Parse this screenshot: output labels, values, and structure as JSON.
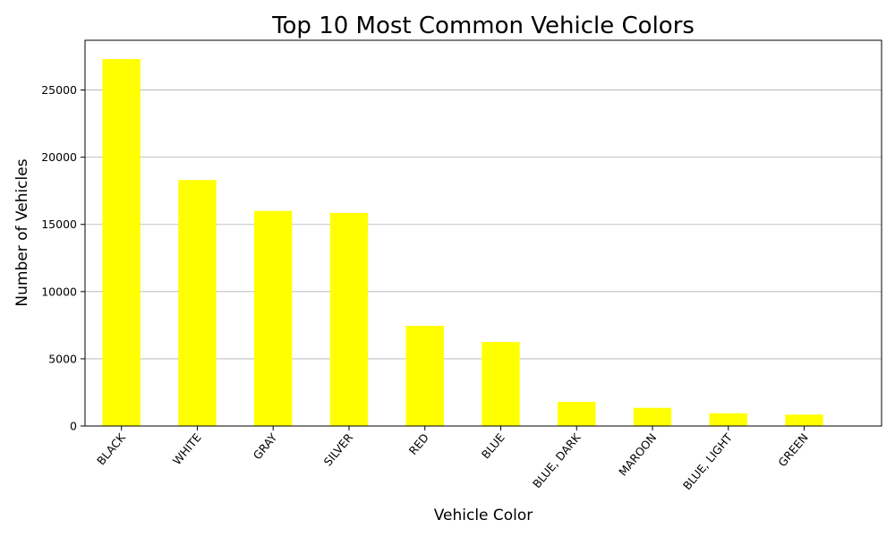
{
  "chart_data": {
    "type": "bar",
    "title": "Top 10 Most Common Vehicle Colors",
    "xlabel": "Vehicle Color",
    "ylabel": "Number of Vehicles",
    "categories": [
      "BLACK",
      "WHITE",
      "GRAY",
      "SILVER",
      "RED",
      "BLUE",
      "BLUE, DARK",
      "MAROON",
      "BLUE, LIGHT",
      "GREEN"
    ],
    "values": [
      27300,
      18300,
      16000,
      15850,
      7450,
      6250,
      1800,
      1350,
      950,
      850
    ],
    "ylim": [
      0,
      28700
    ],
    "yticks": [
      0,
      5000,
      10000,
      15000,
      20000,
      25000
    ],
    "ytick_labels": [
      "0",
      "5000",
      "10000",
      "15000",
      "20000",
      "25000"
    ],
    "grid": "horizontal",
    "bar_color": "#ffff00"
  }
}
